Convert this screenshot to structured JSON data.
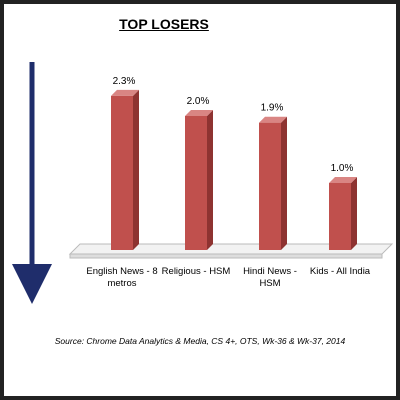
{
  "chart_data": {
    "type": "bar3d",
    "title": "TOP LOSERS",
    "categories": [
      "English News - 8 metros",
      "Religious - HSM",
      "Hindi News - HSM",
      "Kids - All India"
    ],
    "values": [
      2.3,
      2.0,
      1.9,
      1.0
    ],
    "value_labels": [
      "2.3%",
      "2.0%",
      "1.9%",
      "1.0%"
    ],
    "color": "#c0504d",
    "source": "Source: Chrome  Data Analytics & Media, CS 4+,  OTS,  Wk-36 & Wk-37,  2014"
  }
}
